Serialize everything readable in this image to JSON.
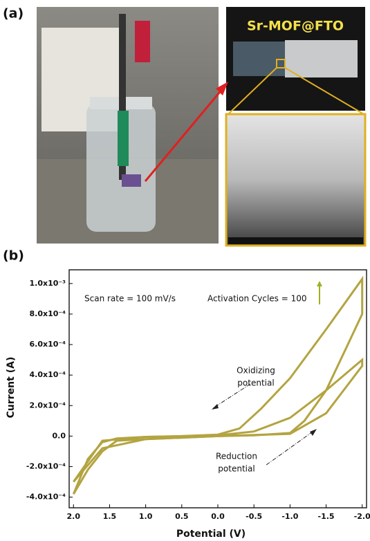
{
  "panels": {
    "a": "(a)",
    "b": "(b)"
  },
  "photo_label": "Sr-MOF@FTO",
  "chart_data": {
    "type": "line",
    "xlabel": "Potential (V)",
    "ylabel": "Current (A)",
    "xlim": [
      2.06,
      -2.06
    ],
    "xticks": [
      {
        "value": 2,
        "label": "2.0"
      },
      1.5,
      {
        "value": 1,
        "label": "1.0"
      },
      0.5,
      {
        "value": 0,
        "label": "0.0"
      },
      -0.5,
      {
        "value": -1,
        "label": "-1.0"
      },
      -1.5,
      {
        "value": -2,
        "label": "-2.0"
      }
    ],
    "ylim": [
      -0.00047,
      0.00109
    ],
    "yticks": [
      {
        "value": -0.0004,
        "label": "-4.0x10⁻⁴"
      },
      {
        "value": -0.0002,
        "label": "-2.0x10⁻⁴"
      },
      {
        "value": 0,
        "label": "0.0"
      },
      {
        "value": 0.0002,
        "label": "2.0x10⁻⁴"
      },
      {
        "value": 0.0004,
        "label": "4.0x10⁻⁴"
      },
      {
        "value": 0.0006,
        "label": "6.0x10⁻⁴"
      },
      {
        "value": 0.0008,
        "label": "8.0x10⁻⁴"
      },
      {
        "value": 0.001,
        "label": "1.0x10⁻³"
      }
    ],
    "annotations": [
      "Scan rate = 100 mV/s",
      "Activation Cycles = 100",
      "Oxidizing",
      "potential",
      "Reduction",
      "potential"
    ],
    "series": [
      {
        "color": "#b3a440",
        "x": [
          2.0,
          1.8,
          1.6,
          1.4,
          1.0,
          0.5,
          0,
          -0.3,
          -0.6,
          -1.0,
          -1.5,
          -2.0,
          -2.0,
          -1.8,
          -1.5,
          -1.2,
          -1.0,
          -0.5,
          0,
          0.5,
          1.0,
          1.4,
          1.6,
          1.8,
          2.0
        ],
        "values": [
          -0.00038,
          -0.00015,
          -4e-05,
          -1.5e-05,
          -5e-06,
          0,
          1e-05,
          5e-05,
          0.00018,
          0.00038,
          0.0007,
          0.00103,
          0.0008,
          0.0006,
          0.0003,
          0.0001,
          2e-05,
          5e-06,
          0,
          -1e-05,
          -2e-05,
          -3e-05,
          -0.0001,
          -0.00022,
          -0.00038
        ]
      },
      {
        "color": "#b3a440",
        "x": [
          2.0,
          1.6,
          1.0,
          0,
          -0.5,
          -1.0,
          -1.5,
          -2.0,
          -2.0,
          -1.5,
          -1.0,
          0,
          1.0,
          1.6,
          2.0
        ],
        "values": [
          -0.0003,
          -3e-05,
          -5e-06,
          5e-06,
          3e-05,
          0.00012,
          0.0003,
          0.0005,
          0.00046,
          0.00015,
          1.5e-05,
          0,
          -2e-05,
          -8e-05,
          -0.0003
        ]
      }
    ]
  }
}
